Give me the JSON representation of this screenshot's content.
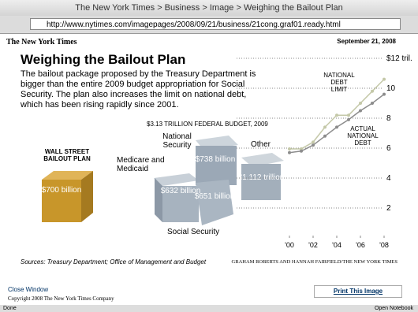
{
  "browser": {
    "window_title": "The New York Times > Business > Image > Weighing the Bailout Plan",
    "url": "http://www.nytimes.com/imagepages/2008/09/21/business/21cong.graf01.ready.html",
    "status": "Done",
    "notebook": "Open Notebook"
  },
  "page": {
    "logo": "The New York Times",
    "date": "September 21, 2008",
    "headline": "Weighing the Bailout Plan",
    "summary": "The bailout package proposed by the Treasury Department is bigger than the entire 2009 budget appropriation for Social Security. The plan also increases the limit on national debt, which has been rising rapidly since 2001.",
    "budget_title": "$3.13 TRILLION FEDERAL BUDGET, 2009",
    "blocks": [
      {
        "name": "WALL STREET BAILOUT PLAN",
        "amount": "$700 billion"
      },
      {
        "name": "Medicare and Medicaid",
        "amount": "$632 billion"
      },
      {
        "name": "National Security",
        "amount": "$738 billion"
      },
      {
        "name": "Social Security",
        "amount": "$651 billion"
      },
      {
        "name": "Other",
        "amount": "$1.112 trillion"
      }
    ],
    "sources": "Sources: Treasury Department; Office of Management and Budget",
    "credit": "GRAHAM ROBERTS AND HANNAH FAIRFIELD/THE NEW YORK TIMES",
    "close": "Close Window",
    "copyright": "Copyright 2008 The New York Times Company",
    "print": "Print This Image"
  },
  "chart_data": {
    "type": "line",
    "x": [
      2000,
      2001,
      2002,
      2003,
      2004,
      2005,
      2006,
      2007,
      2008
    ],
    "series": [
      {
        "name": "NATIONAL DEBT LIMIT",
        "color": "#c4c8a8",
        "values": [
          5.95,
          5.95,
          6.4,
          7.4,
          8.2,
          8.2,
          9.0,
          9.8,
          10.6
        ]
      },
      {
        "name": "ACTUAL NATIONAL DEBT",
        "color": "#8c8c8c",
        "values": [
          5.7,
          5.8,
          6.2,
          6.8,
          7.4,
          7.9,
          8.5,
          9.0,
          9.6
        ]
      }
    ],
    "xlim": [
      2000,
      2008
    ],
    "xticks": [
      {
        "value": 2000,
        "label": "'00"
      },
      {
        "value": 2002,
        "label": "'02"
      },
      {
        "value": 2004,
        "label": "'04"
      },
      {
        "value": 2006,
        "label": "'06"
      },
      {
        "value": 2008,
        "label": "'08"
      }
    ],
    "ylim": [
      0,
      12
    ],
    "yticks": [
      2,
      4,
      6,
      8,
      10,
      {
        "value": 12,
        "label": "$12 tril."
      }
    ],
    "grid": true
  }
}
